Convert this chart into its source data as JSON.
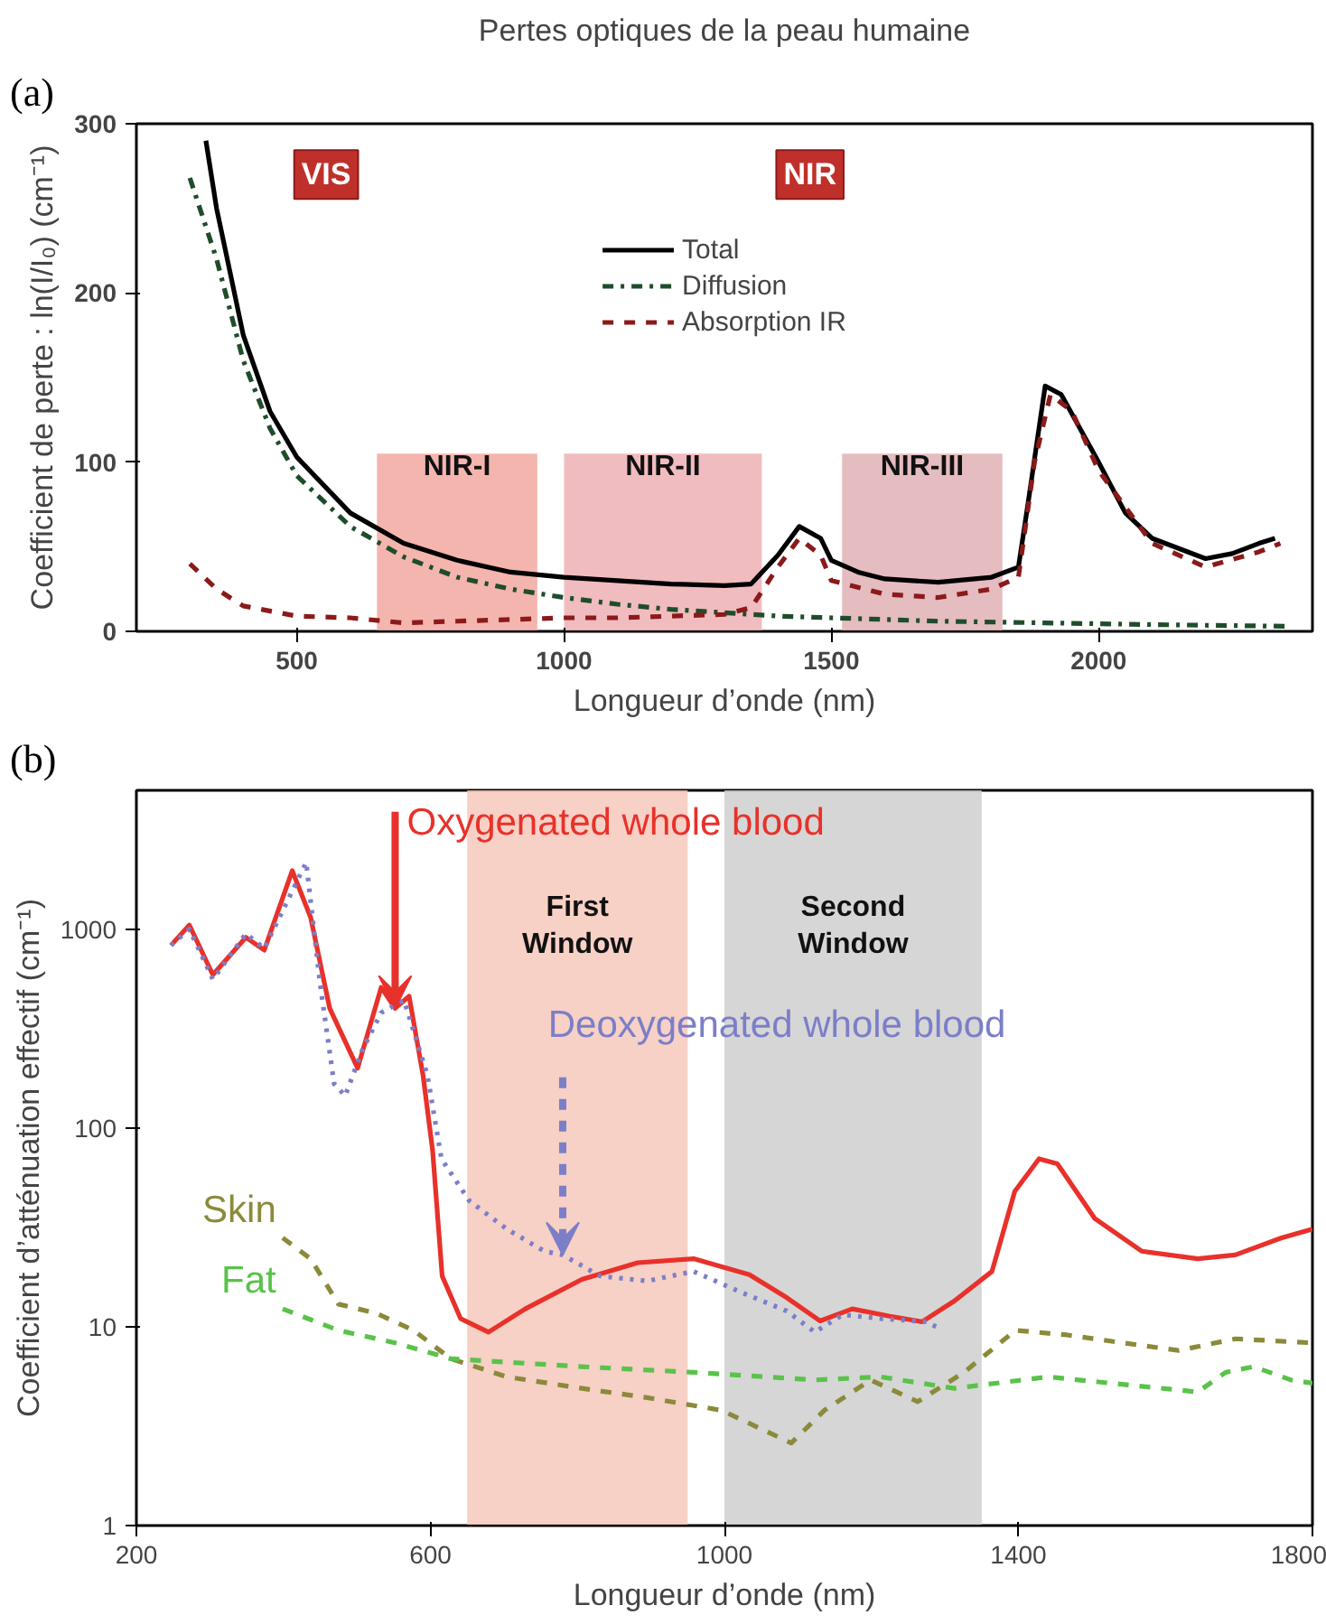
{
  "chart_data": [
    {
      "type": "line",
      "title": "Pertes optiques de la peau humaine",
      "xlabel": "Longueur d’onde (nm)",
      "ylabel": "Coefficient de perte : ln(I/I₀) (cm⁻¹)",
      "xlim": [
        200,
        2400
      ],
      "ylim": [
        0,
        300
      ],
      "xticks": [
        500,
        1000,
        1500,
        2000
      ],
      "yticks": [
        0,
        100,
        200,
        300
      ],
      "legend": "top",
      "grid": false,
      "bands": [
        {
          "axis": "x",
          "from": 650,
          "to": 950,
          "label": "NIR-I",
          "color": "#f2a8a0"
        },
        {
          "axis": "x",
          "from": 1000,
          "to": 1370,
          "label": "NIR-II",
          "color": "#eeb0b4"
        },
        {
          "axis": "x",
          "from": 1520,
          "to": 1820,
          "label": "NIR-III",
          "color": "#e0b0b4"
        }
      ],
      "annotations": [
        "(a)",
        {
          "text": "VIS",
          "x": 555,
          "y": 270
        },
        {
          "text": "NIR",
          "x": 1460,
          "y": 270
        }
      ],
      "series": [
        {
          "name": "Total",
          "color": "#000000",
          "line_style": "solid",
          "x": [
            330,
            350,
            400,
            450,
            500,
            600,
            700,
            800,
            900,
            1000,
            1100,
            1200,
            1300,
            1350,
            1400,
            1440,
            1480,
            1500,
            1550,
            1600,
            1700,
            1800,
            1850,
            1870,
            1900,
            1930,
            2000,
            2050,
            2100,
            2200,
            2250,
            2300,
            2330
          ],
          "values": [
            290,
            250,
            175,
            130,
            103,
            70,
            52,
            42,
            35,
            32,
            30,
            28,
            27,
            28,
            45,
            62,
            55,
            42,
            35,
            31,
            29,
            32,
            38,
            80,
            145,
            140,
            100,
            70,
            55,
            43,
            46,
            52,
            55
          ]
        },
        {
          "name": "Diffusion",
          "color": "#1f4d2b",
          "line_style": "dashdot",
          "x": [
            300,
            350,
            400,
            450,
            500,
            600,
            700,
            800,
            900,
            1000,
            1100,
            1200,
            1300,
            1400,
            1500,
            1700,
            1900,
            2100,
            2350
          ],
          "values": [
            268,
            220,
            160,
            120,
            92,
            62,
            44,
            32,
            25,
            20,
            16,
            13,
            11,
            9,
            8,
            6,
            5,
            4,
            3
          ]
        },
        {
          "name": "Absorption IR",
          "color": "#8b1a1a",
          "line_style": "dashed",
          "x": [
            300,
            350,
            400,
            500,
            600,
            700,
            800,
            900,
            1000,
            1100,
            1200,
            1300,
            1350,
            1400,
            1440,
            1480,
            1500,
            1600,
            1700,
            1800,
            1850,
            1880,
            1910,
            1950,
            2000,
            2100,
            2200,
            2300,
            2340
          ],
          "values": [
            40,
            25,
            15,
            9,
            8,
            5,
            6,
            7,
            8,
            8,
            9,
            10,
            14,
            38,
            55,
            45,
            30,
            22,
            20,
            25,
            32,
            100,
            140,
            130,
            95,
            52,
            38,
            47,
            52
          ]
        }
      ]
    },
    {
      "type": "line",
      "xlabel": "Longueur d’onde (nm)",
      "ylabel": "Coefficient d’atténuation effectif (cm⁻¹)",
      "log": "y",
      "xlim": [
        200,
        1800
      ],
      "ylim": [
        1,
        5000
      ],
      "xticks": [
        200,
        600,
        1000,
        1400,
        1800
      ],
      "yticks": [
        1,
        10,
        100,
        1000
      ],
      "grid": false,
      "bands": [
        {
          "axis": "x",
          "from": 650,
          "to": 950,
          "label": "First\nWindow",
          "color": "#f6c8bc"
        },
        {
          "axis": "x",
          "from": 1000,
          "to": 1350,
          "label": "Second\nWindow",
          "color": "#cfcfcf"
        }
      ],
      "annotations": [
        "(b)",
        {
          "text": "Oxygenated whole blood",
          "x": 552,
          "y": 400
        },
        {
          "text": "Deoxygenated whole blood",
          "x": 780,
          "y": 23
        },
        {
          "text": "Skin",
          "x": 400,
          "y": 28
        },
        {
          "text": "Fat",
          "x": 400,
          "y": 12.3
        }
      ],
      "series": [
        {
          "color": "#e8312a",
          "line_style": "solid",
          "x": [
            247,
            272,
            304,
            349,
            374,
            412,
            437,
            463,
            501,
            533,
            552,
            571,
            590,
            603,
            616,
            641,
            679,
            729,
            806,
            882,
            958,
            1034,
            1085,
            1130,
            1174,
            1225,
            1269,
            1313,
            1364,
            1395,
            1428,
            1453,
            1504,
            1568,
            1644,
            1695,
            1758,
            1800
          ],
          "values": [
            830,
            1050,
            590,
            910,
            785,
            1970,
            1150,
            400,
            200,
            510,
            400,
            460,
            184,
            77,
            18,
            11,
            9.4,
            12.3,
            17.3,
            21,
            22,
            18.3,
            14,
            10.7,
            12.3,
            11.3,
            10.6,
            13.5,
            19,
            48,
            70,
            66,
            35,
            24,
            22,
            23,
            28,
            31
          ]
        },
        {
          "color": "#7b7fc8",
          "line_style": "dotted",
          "x": [
            247,
            272,
            304,
            349,
            374,
            406,
            431,
            450,
            469,
            484,
            507,
            533,
            564,
            596,
            615,
            653,
            704,
            755,
            780,
            831,
            895,
            958,
            1021,
            1085,
            1123,
            1161,
            1212,
            1275,
            1288
          ],
          "values": [
            830,
            1000,
            560,
            950,
            800,
            1400,
            2170,
            530,
            167,
            145,
            245,
            380,
            440,
            184,
            70,
            43,
            31,
            24,
            23,
            18,
            17,
            19,
            15,
            12,
            9.4,
            11.5,
            11,
            10.6,
            10
          ]
        },
        {
          "color": "#8b8a3a",
          "line_style": "dashed",
          "x": [
            399,
            437,
            475,
            526,
            577,
            628,
            704,
            806,
            895,
            996,
            1091,
            1136,
            1199,
            1263,
            1326,
            1396,
            1466,
            1542,
            1618,
            1695,
            1800
          ],
          "values": [
            28,
            22,
            13,
            11.7,
            9.6,
            6.9,
            5.6,
            4.9,
            4.4,
            3.8,
            2.6,
            3.8,
            5.4,
            4.2,
            5.9,
            9.6,
            9.1,
            8.3,
            7.6,
            8.7,
            8.3
          ]
        },
        {
          "color": "#5ac24a",
          "line_style": "dashed",
          "x": [
            399,
            475,
            552,
            628,
            806,
            958,
            1123,
            1212,
            1313,
            1440,
            1644,
            1682,
            1720,
            1771,
            1800
          ],
          "values": [
            12.3,
            9.6,
            8.3,
            6.9,
            6.3,
            5.9,
            5.4,
            5.6,
            4.9,
            5.6,
            4.7,
            5.9,
            6.3,
            5.4,
            5.2
          ]
        }
      ]
    }
  ]
}
